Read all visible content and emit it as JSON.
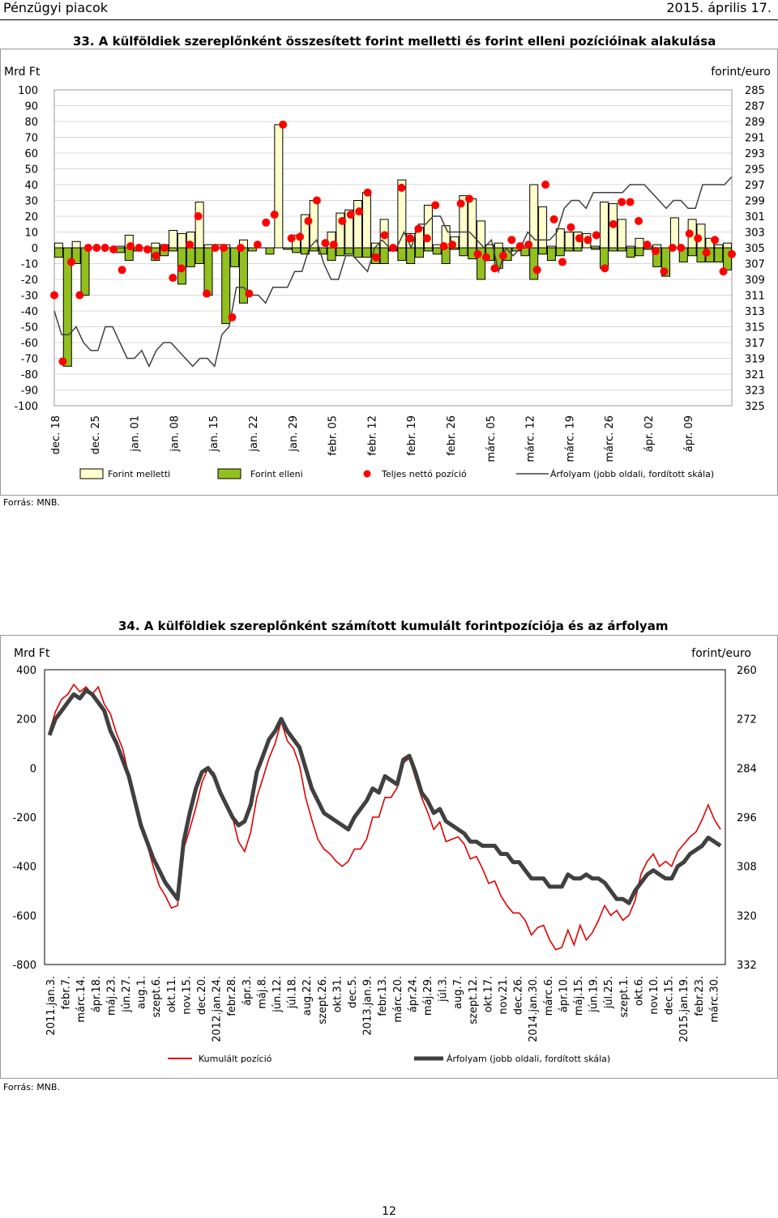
{
  "header": {
    "section": "Pénzügyi piacok",
    "date": "2015. április 17."
  },
  "page_number": "12",
  "chart_data": [
    {
      "type": "bar",
      "title": "33. A külföldiek szereplőnként összesített forint melletti és forint elleni pozícióinak alakulása",
      "ylabel": "Mrd Ft",
      "y2label": "forint/euro",
      "ylim": [
        -100,
        100
      ],
      "y2lim": [
        285,
        325
      ],
      "y2_inverted": true,
      "y_ticks": [
        "100",
        "90",
        "80",
        "70",
        "60",
        "50",
        "40",
        "30",
        "20",
        "10",
        "0",
        "-10",
        "-20",
        "-30",
        "-40",
        "-50",
        "-60",
        "-70",
        "-80",
        "-90",
        "-100"
      ],
      "y2_ticks": [
        "285",
        "287",
        "289",
        "291",
        "293",
        "295",
        "297",
        "299",
        "301",
        "303",
        "305",
        "307",
        "309",
        "311",
        "313",
        "315",
        "317",
        "319",
        "321",
        "323",
        "325"
      ],
      "x_labels": [
        "dec. 18",
        "dec. 25",
        "jan. 01",
        "jan. 08",
        "jan. 15",
        "jan. 22",
        "jan. 29",
        "febr. 05",
        "febr. 12",
        "febr. 19",
        "febr. 26",
        "márc. 05",
        "márc. 12",
        "márc. 19",
        "márc. 26",
        "ápr. 02",
        "ápr. 09"
      ],
      "source": "Forrás: MNB.",
      "grid": true,
      "legend_position": "bottom",
      "legend": [
        "Forint melletti",
        "Forint elleni",
        "Teljes nettó pozíció",
        "Árfolyam (jobb oldali, fordított skála)"
      ],
      "colors": {
        "pro": "#ffffcc",
        "contra": "#92c01e",
        "net": "#ff0000",
        "rate": "#404040"
      },
      "series": [
        {
          "name": "Forint melletti",
          "values": [
            3,
            0,
            4,
            0,
            0,
            0,
            0,
            1,
            8,
            0,
            0,
            3,
            2,
            11,
            9,
            10,
            29,
            2,
            2,
            2,
            0,
            5,
            0,
            0,
            0,
            78,
            0,
            8,
            21,
            30,
            0,
            10,
            22,
            24,
            30,
            35,
            3,
            18,
            0,
            43,
            9,
            13,
            27,
            2,
            14,
            7,
            33,
            31,
            17,
            2,
            3,
            0,
            0,
            1,
            40,
            26,
            1,
            12,
            10,
            10,
            9,
            1,
            29,
            28,
            18,
            1,
            6,
            1,
            2,
            0,
            19,
            0,
            18,
            15,
            6,
            2,
            3
          ]
        },
        {
          "name": "Forint elleni",
          "values": [
            -6,
            -75,
            -10,
            -30,
            0,
            0,
            0,
            -3,
            -8,
            -2,
            0,
            -8,
            -5,
            -2,
            -23,
            -12,
            -10,
            -30,
            0,
            -48,
            -12,
            -35,
            -2,
            0,
            -4,
            0,
            -1,
            -3,
            -4,
            -2,
            -4,
            -8,
            -5,
            -4,
            -6,
            -6,
            -10,
            -10,
            -2,
            -8,
            -10,
            -6,
            -2,
            -4,
            -10,
            -1,
            -5,
            -7,
            -20,
            -8,
            -13,
            -8,
            -2,
            -5,
            -20,
            -4,
            -8,
            -5,
            -2,
            -2,
            0,
            -1,
            -13,
            -2,
            -2,
            -6,
            -5,
            -1,
            -12,
            -18,
            0,
            -9,
            -5,
            -9,
            -9,
            -9,
            -14,
            -10
          ]
        },
        {
          "name": "Teljes nettó pozíció",
          "values": [
            -30,
            -72,
            -9,
            -30,
            0,
            0,
            0,
            -1,
            -14,
            1,
            0,
            -1,
            -5,
            0,
            -19,
            -13,
            2,
            20,
            -29,
            0,
            0,
            -44,
            0,
            -29,
            2,
            16,
            21,
            78,
            6,
            7,
            17,
            30,
            3,
            2,
            17,
            21,
            23,
            35,
            -6,
            8,
            0,
            38,
            6,
            12,
            6,
            27,
            1,
            2,
            28,
            31,
            -4,
            -6,
            -13,
            -5,
            5,
            1,
            2,
            -14,
            40,
            18,
            -9,
            13,
            6,
            5,
            8,
            -13,
            15,
            29,
            29,
            17,
            2,
            -2,
            -15,
            0,
            0,
            9,
            6,
            -3,
            5,
            -15,
            -4
          ]
        },
        {
          "name": "Árfolyam (jobb oldali, fordított skála)",
          "values": [
            313,
            316,
            316,
            315,
            317,
            318,
            318,
            315,
            315,
            317,
            319,
            319,
            318,
            320,
            318,
            317,
            317,
            318,
            319,
            320,
            319,
            319,
            320,
            316,
            315,
            310,
            310,
            311,
            311,
            312,
            310,
            310,
            310,
            308,
            308,
            305,
            304,
            307,
            309,
            309,
            306,
            306,
            307,
            308,
            305,
            304,
            305,
            305,
            303,
            305,
            302,
            302,
            301,
            301,
            303,
            303,
            303,
            303,
            304,
            305,
            304,
            308,
            305,
            306,
            305,
            303,
            304,
            304,
            304,
            303,
            300,
            299,
            299,
            300,
            298,
            298,
            298,
            298,
            298,
            297,
            297,
            297,
            298,
            299,
            300,
            299,
            299,
            300,
            300,
            297,
            297,
            297,
            297,
            296
          ]
        }
      ]
    },
    {
      "type": "line",
      "title": "34. A külföldiek szereplőnként számított kumulált forintpozíciója és az árfolyam",
      "ylabel": "Mrd Ft",
      "y2label": "forint/euro",
      "ylim": [
        -800,
        400
      ],
      "y2lim": [
        260,
        332
      ],
      "y2_inverted": true,
      "y_ticks": [
        "400",
        "200",
        "0",
        "-200",
        "-400",
        "-600",
        "-800"
      ],
      "y2_ticks": [
        "260",
        "272",
        "284",
        "296",
        "308",
        "320",
        "332"
      ],
      "x_labels": [
        "2011.jan.3.",
        "febr.7.",
        "márc.14.",
        "ápr.18.",
        "máj.23.",
        "jún.27.",
        "aug.1.",
        "szept.6.",
        "okt.11.",
        "nov.15.",
        "dec.20.",
        "2012.jan.24.",
        "febr.28.",
        "ápr.3.",
        "máj.8.",
        "jún.12.",
        "júl.18.",
        "aug.22.",
        "szept.26.",
        "okt.31.",
        "dec.5.",
        "2013.jan.9.",
        "febr.13.",
        "márc.20.",
        "ápr.24.",
        "máj.29.",
        "júl.3.",
        "aug.7.",
        "szept.12.",
        "okt.17.",
        "nov.21.",
        "dec.26.",
        "2014.jan.30.",
        "márc.6.",
        "ápr.10.",
        "máj.15.",
        "jún.19.",
        "júl.25.",
        "szept.1.",
        "okt.6.",
        "nov.10.",
        "dec.15.",
        "2015.jan.19.",
        "febr.23.",
        "márc.30."
      ],
      "source": "Forrás: MNB.",
      "grid": false,
      "legend_position": "bottom",
      "legend": [
        "Kumulált pozíció",
        "Árfolyam (jobb oldali, fordított skála)"
      ],
      "colors": {
        "cum": "#e00000",
        "rate": "#404040"
      },
      "series": [
        {
          "name": "Kumulált pozíció",
          "x": [
            0,
            2,
            4,
            6,
            8,
            10,
            12,
            14,
            16,
            18,
            20,
            22,
            24,
            26,
            28,
            30,
            32,
            34,
            36,
            38,
            40,
            42,
            44,
            46,
            48,
            50,
            52,
            54,
            56,
            58,
            60,
            62,
            64,
            66,
            68,
            70,
            72,
            74,
            76,
            78,
            80,
            82,
            84,
            86,
            88,
            90,
            92,
            94,
            96,
            98,
            100,
            102,
            104,
            106,
            108,
            110,
            112,
            114,
            116,
            118,
            120,
            122,
            124,
            126,
            128,
            130,
            132,
            134,
            136,
            138,
            140,
            142,
            144,
            146,
            148,
            150,
            152,
            154,
            156,
            158,
            160,
            162,
            164,
            166,
            168,
            170,
            172,
            174,
            176,
            178,
            180,
            182,
            184,
            186,
            188,
            190,
            192,
            194,
            196,
            198,
            200,
            202,
            204,
            206,
            208,
            210,
            212,
            214,
            216,
            218,
            220
          ],
          "values": [
            150,
            230,
            280,
            300,
            340,
            310,
            330,
            300,
            330,
            260,
            220,
            140,
            80,
            -30,
            -130,
            -230,
            -310,
            -400,
            -480,
            -520,
            -570,
            -560,
            -330,
            -250,
            -160,
            -60,
            0,
            -20,
            -100,
            -160,
            -200,
            -300,
            -340,
            -260,
            -120,
            -40,
            40,
            100,
            190,
            110,
            80,
            10,
            -120,
            -210,
            -290,
            -330,
            -350,
            -380,
            -400,
            -380,
            -330,
            -330,
            -290,
            -200,
            -200,
            -120,
            -120,
            -80,
            20,
            40,
            -40,
            -120,
            -180,
            -250,
            -220,
            -300,
            -290,
            -280,
            -310,
            -370,
            -360,
            -410,
            -470,
            -460,
            -520,
            -560,
            -590,
            -590,
            -620,
            -680,
            -650,
            -640,
            -700,
            -740,
            -730,
            -660,
            -720,
            -640,
            -700,
            -670,
            -620,
            -560,
            -600,
            -580,
            -620,
            -600,
            -540,
            -430,
            -380,
            -350,
            -400,
            -380,
            -400,
            -340,
            -310,
            -280,
            -260,
            -210,
            -150,
            -210,
            -250
          ]
        },
        {
          "name": "Árfolyam (jobb oldali, fordított skála)",
          "x": [
            0,
            2,
            4,
            6,
            8,
            10,
            12,
            14,
            16,
            18,
            20,
            22,
            24,
            26,
            28,
            30,
            32,
            34,
            36,
            38,
            40,
            42,
            44,
            46,
            48,
            50,
            52,
            54,
            56,
            58,
            60,
            62,
            64,
            66,
            68,
            70,
            72,
            74,
            76,
            78,
            80,
            82,
            84,
            86,
            88,
            90,
            92,
            94,
            96,
            98,
            100,
            102,
            104,
            106,
            108,
            110,
            112,
            114,
            116,
            118,
            120,
            122,
            124,
            126,
            128,
            130,
            132,
            134,
            136,
            138,
            140,
            142,
            144,
            146,
            148,
            150,
            152,
            154,
            156,
            158,
            160,
            162,
            164,
            166,
            168,
            170,
            172,
            174,
            176,
            178,
            180,
            182,
            184,
            186,
            188,
            190,
            192,
            194,
            196,
            198,
            200,
            202,
            204,
            206,
            208,
            210,
            212,
            214,
            216,
            218,
            220
          ],
          "values": [
            276,
            272,
            270,
            268,
            266,
            267,
            265,
            266,
            268,
            270,
            275,
            278,
            282,
            286,
            292,
            298,
            302,
            306,
            309,
            312,
            314,
            316,
            302,
            295,
            289,
            285,
            284,
            286,
            290,
            293,
            296,
            298,
            297,
            293,
            285,
            281,
            277,
            275,
            272,
            275,
            277,
            279,
            284,
            289,
            292,
            295,
            296,
            297,
            298,
            299,
            296,
            294,
            292,
            289,
            290,
            286,
            287,
            288,
            282,
            281,
            285,
            290,
            292,
            295,
            294,
            297,
            298,
            299,
            300,
            302,
            302,
            303,
            303,
            303,
            305,
            305,
            307,
            307,
            309,
            311,
            311,
            311,
            313,
            313,
            313,
            310,
            311,
            311,
            310,
            311,
            311,
            312,
            314,
            316,
            316,
            317,
            314,
            312,
            310,
            309,
            310,
            311,
            311,
            308,
            307,
            305,
            304,
            303,
            301,
            302,
            303
          ]
        }
      ]
    }
  ]
}
